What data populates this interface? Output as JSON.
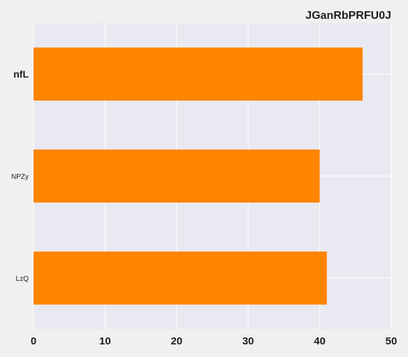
{
  "chart_data": {
    "type": "bar",
    "orientation": "horizontal",
    "title": "JGanRbPRFU0J",
    "categories": [
      "nfL",
      "NPZy",
      "LzQ"
    ],
    "values": [
      46,
      40,
      41
    ],
    "xlim": [
      0,
      50
    ],
    "xticks": [
      0,
      10,
      20,
      30,
      40,
      50
    ],
    "grid": true,
    "bar_color": "#ff8400",
    "plot_background": "#e9e9f1",
    "page_background": "#f0f0f0",
    "grid_color": "#ffffff"
  }
}
